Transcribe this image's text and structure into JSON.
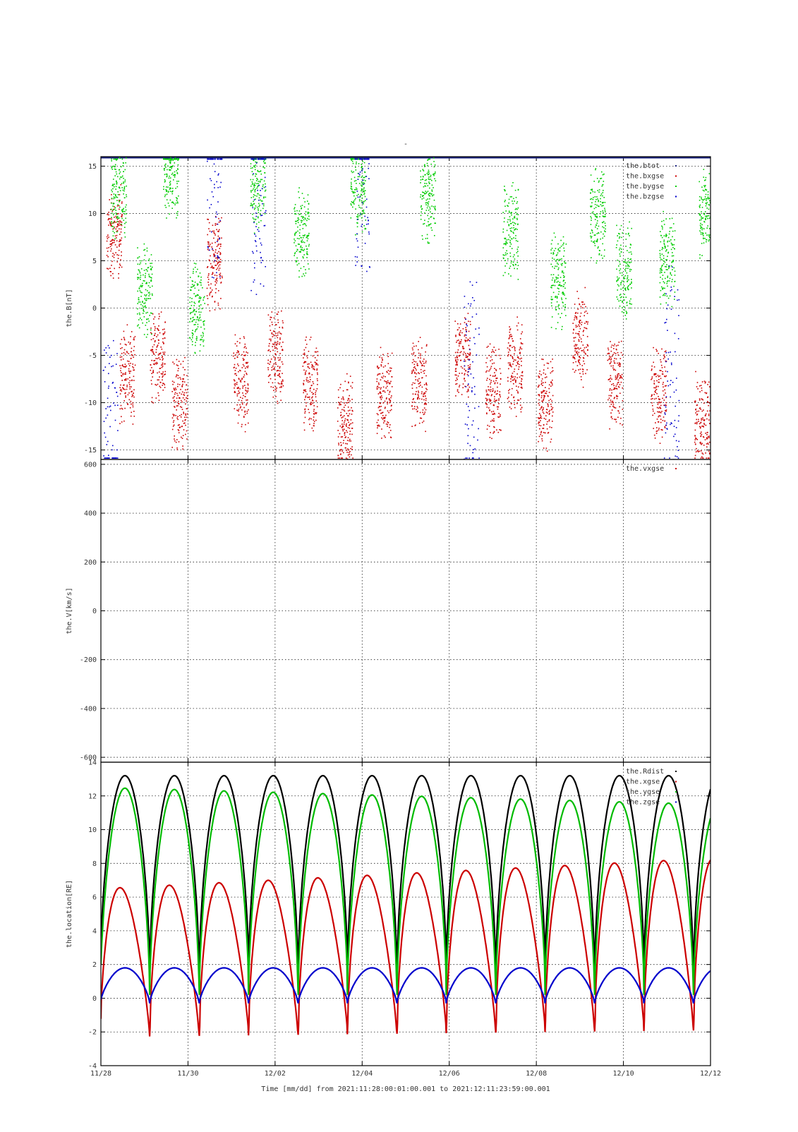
{
  "figure": {
    "title": "-",
    "xlabel": "Time [mm/dd]  from 2021:11:28:00:01:00.001  to  2021:12:11:23:59:00.001"
  },
  "chart_data": [
    {
      "type": "scatter",
      "panel": "magnetic-field",
      "ylabel": "the.B[nT]",
      "ylim": [
        -16,
        16
      ],
      "yticks": [
        -15,
        -10,
        -5,
        0,
        5,
        10,
        15
      ],
      "xlim_days": [
        0,
        14
      ],
      "xtick_labels": [
        "11/28",
        "11/30",
        "12/02",
        "12/04",
        "12/06",
        "12/08",
        "12/10",
        "12/12"
      ],
      "grid": true,
      "legend_position": "top-right",
      "colors": {
        "the.btot": "#1a237e",
        "the.bxgse": "#cc0000",
        "the.bygse": "#00cc00",
        "the.bzgse": "#0000cc"
      },
      "series": [
        {
          "name": "the.btot",
          "note": "clipped above range (> 16 nT) for entire interval"
        },
        {
          "name": "the.bxgse",
          "shape": "orbit-periodic sawtooth",
          "approx_values": [
            {
              "day": 0.3,
              "y": 8
            },
            {
              "day": 0.6,
              "y": -7
            },
            {
              "day": 1.3,
              "y": -5
            },
            {
              "day": 1.8,
              "y": -10
            },
            {
              "day": 2.6,
              "y": 5
            },
            {
              "day": 3.2,
              "y": -8
            },
            {
              "day": 4.0,
              "y": -5
            },
            {
              "day": 4.8,
              "y": -8
            },
            {
              "day": 5.6,
              "y": -12
            },
            {
              "day": 6.5,
              "y": -9
            },
            {
              "day": 7.3,
              "y": -8
            },
            {
              "day": 8.3,
              "y": -5
            },
            {
              "day": 9.0,
              "y": -9
            },
            {
              "day": 9.5,
              "y": -6
            },
            {
              "day": 10.2,
              "y": -10
            },
            {
              "day": 11.0,
              "y": -3
            },
            {
              "day": 11.8,
              "y": -8
            },
            {
              "day": 12.8,
              "y": -9
            },
            {
              "day": 13.8,
              "y": -12
            }
          ]
        },
        {
          "name": "the.bygse",
          "shape": "orbit-periodic decreasing ramps",
          "approx_values": [
            {
              "day": 0.4,
              "y": 12
            },
            {
              "day": 1.0,
              "y": 2
            },
            {
              "day": 1.6,
              "y": 14
            },
            {
              "day": 2.2,
              "y": 0
            },
            {
              "day": 3.6,
              "y": 13
            },
            {
              "day": 4.6,
              "y": 8
            },
            {
              "day": 5.9,
              "y": 13
            },
            {
              "day": 7.5,
              "y": 12
            },
            {
              "day": 9.4,
              "y": 8
            },
            {
              "day": 10.5,
              "y": 3
            },
            {
              "day": 11.4,
              "y": 10
            },
            {
              "day": 12.0,
              "y": 4
            },
            {
              "day": 13.0,
              "y": 5
            },
            {
              "day": 13.9,
              "y": 10
            }
          ]
        },
        {
          "name": "the.bzgse",
          "shape": "scattered near ±15 at orbit boundaries",
          "approx_values": [
            {
              "day": 0.2,
              "y": -12
            },
            {
              "day": 2.6,
              "y": 14
            },
            {
              "day": 3.6,
              "y": 12
            },
            {
              "day": 6.0,
              "y": 14
            },
            {
              "day": 8.5,
              "y": -8
            },
            {
              "day": 13.1,
              "y": -6
            }
          ]
        }
      ]
    },
    {
      "type": "scatter",
      "panel": "velocity",
      "ylabel": "the.V[km/s]",
      "ylim": [
        -620,
        620
      ],
      "yticks": [
        -600,
        -400,
        -200,
        0,
        200,
        400,
        600
      ],
      "xlim_days": [
        0,
        14
      ],
      "grid": true,
      "legend_position": "top-right",
      "colors": {
        "the.vxgse": "#cc0000"
      },
      "series": [
        {
          "name": "the.vxgse",
          "note": "no data points visible in plotted range"
        }
      ]
    },
    {
      "type": "line",
      "panel": "location",
      "ylabel": "the.location[RE]",
      "ylim": [
        -4,
        14
      ],
      "yticks": [
        -4,
        -2,
        0,
        2,
        4,
        6,
        8,
        10,
        12,
        14
      ],
      "xlim_days": [
        0,
        14
      ],
      "grid": true,
      "legend_position": "top-right",
      "orbit_period_days": 1.135,
      "perigee_days": [
        1.12,
        2.26,
        3.39,
        4.53,
        5.66,
        6.8,
        7.93,
        9.07,
        10.2,
        11.34,
        12.47,
        13.61
      ],
      "colors": {
        "the.Rdist": "#000000",
        "the.xgse": "#cc0000",
        "the.ygse": "#00bb00",
        "the.zgse": "#0000cc"
      },
      "series": [
        {
          "name": "the.Rdist",
          "apogee": 13.2,
          "perigee": 1.2
        },
        {
          "name": "the.xgse",
          "apogee_start": 6.5,
          "apogee_end": 8.3,
          "perigee_start": -2.3,
          "perigee_end": -1.9
        },
        {
          "name": "the.ygse",
          "apogee_start": 12.5,
          "apogee_end": 11.5,
          "perigee": 0.2
        },
        {
          "name": "the.zgse",
          "max": 1.8,
          "min": -0.3
        }
      ]
    }
  ]
}
